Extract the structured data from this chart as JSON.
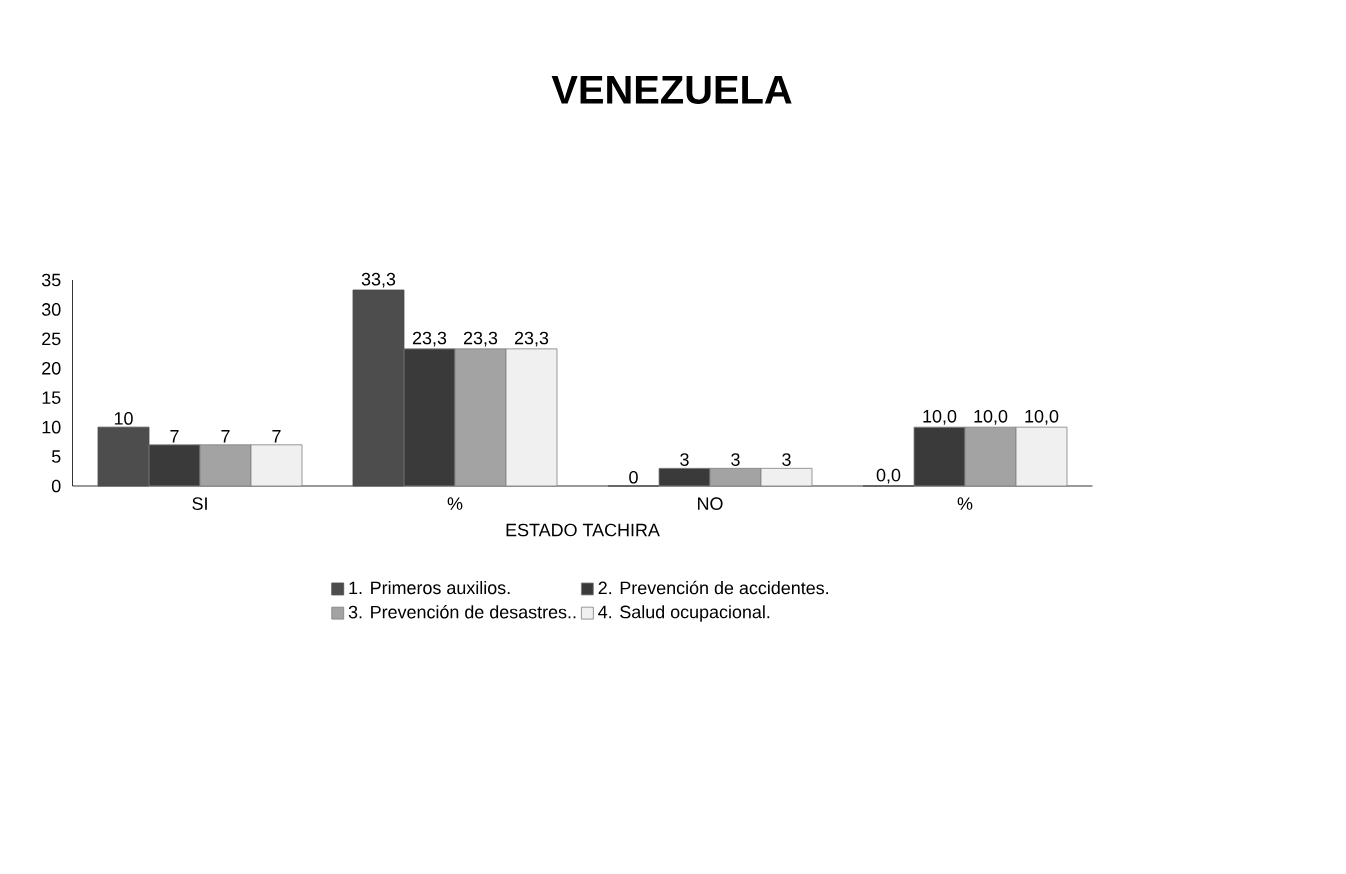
{
  "chart_data": {
    "type": "bar",
    "title": "VENEZUELA",
    "xlabel": "ESTADO TACHIRA",
    "categories": [
      "SI",
      "%",
      "NO",
      "%"
    ],
    "series": [
      {
        "name": "1. Primeros auxilios.",
        "color": "#4d4d4d",
        "values": [
          10,
          33.3,
          0,
          0.0
        ],
        "value_labels": [
          "10",
          "33,3",
          "0",
          "0,0"
        ]
      },
      {
        "name": "2. Prevención de accidentes.",
        "color": "#3a3a3a",
        "values": [
          7,
          23.3,
          3,
          10.0
        ],
        "value_labels": [
          "7",
          "23,3",
          "3",
          "10,0"
        ]
      },
      {
        "name": "3. Prevención de desastres..",
        "color": "#a3a3a3",
        "values": [
          7,
          23.3,
          3,
          10.0
        ],
        "value_labels": [
          "7",
          "23,3",
          "3",
          "10,0"
        ]
      },
      {
        "name": "4. Salud ocupacional.",
        "color": "#f0f0f0",
        "values": [
          7,
          23.3,
          3,
          10.0
        ],
        "value_labels": [
          "7",
          "23,3",
          "3",
          "10,0"
        ]
      }
    ],
    "ylim": [
      0,
      35
    ],
    "yticks": [
      0,
      5,
      10,
      15,
      20,
      25,
      30,
      35
    ],
    "grid": false,
    "legend": "bottom"
  }
}
